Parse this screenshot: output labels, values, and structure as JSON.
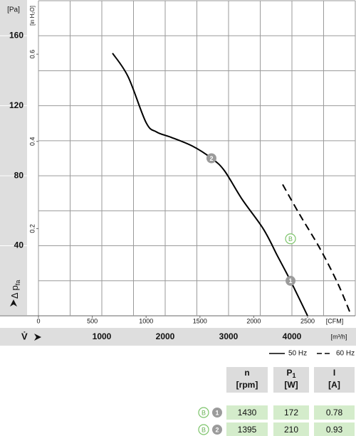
{
  "chart_data": {
    "type": "line",
    "y_label": {
      "main": "Δ p",
      "sub": "fa"
    },
    "y_unit": "[Pa]",
    "y2_unit": "[in H₂O]",
    "x_label": "V̇",
    "x_unit": "[m³/h]",
    "x2_unit": "[CFM]",
    "xlim": [
      0,
      5000
    ],
    "xticks": [
      1000,
      2000,
      3000,
      4000
    ],
    "x_minor_ticks": [
      500,
      1500,
      2500,
      3500,
      4500
    ],
    "x2lim": [
      0,
      2943
    ],
    "x2ticks": [
      0,
      500,
      1000,
      1500,
      2000,
      2500
    ],
    "ylim": [
      0,
      180
    ],
    "yticks": [
      40,
      80,
      120,
      160
    ],
    "y_minor_ticks": [
      20,
      60,
      100,
      140
    ],
    "y2lim": [
      0,
      0.7226
    ],
    "y2ticks": [
      0.2,
      0.4,
      0.6
    ],
    "grid": true,
    "series": [
      {
        "name": "50 Hz",
        "color": "#000000",
        "dashed": false,
        "x": [
          1169,
          1416,
          1697,
          1865,
          2090,
          2427,
          2730,
          2933,
          3213,
          3551,
          3775,
          3978,
          4247
        ],
        "values": [
          150,
          136.5,
          110.5,
          105,
          102,
          97,
          90,
          83,
          66.6,
          49.5,
          34,
          20,
          0
        ]
      },
      {
        "name": "60 Hz",
        "color": "#000000",
        "dashed": true,
        "x": [
          3854,
          4112,
          4449,
          4730,
          4933
        ],
        "values": [
          75,
          58.5,
          38,
          18,
          0.4
        ]
      }
    ],
    "points": [
      {
        "label": "1",
        "x": 3978,
        "y": 20
      },
      {
        "label": "2",
        "x": 2730,
        "y": 90
      }
    ],
    "curve_marker": "B"
  },
  "table": {
    "header": [
      {
        "main": "n",
        "unit": "[rpm]"
      },
      {
        "main": "P",
        "sub": "1",
        "unit": "[W]"
      },
      {
        "main": "I",
        "unit": "[A]"
      }
    ],
    "rows": [
      {
        "marks": [
          "B",
          "1"
        ],
        "cells": [
          1430,
          172,
          0.78
        ]
      },
      {
        "marks": [
          "B",
          "2"
        ],
        "cells": [
          1395,
          210,
          0.93
        ]
      }
    ]
  }
}
